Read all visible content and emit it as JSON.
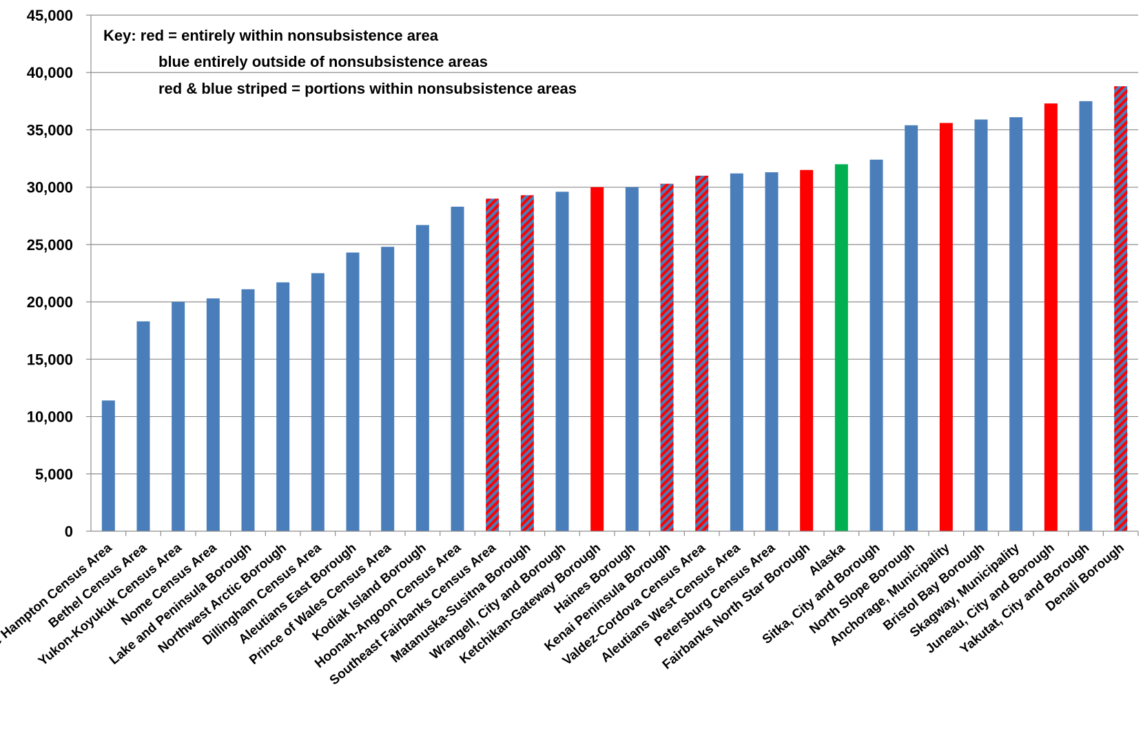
{
  "chart_data": {
    "type": "bar",
    "title": "",
    "xlabel": "",
    "ylabel": "",
    "ylim": [
      0,
      45000
    ],
    "yticks": [
      0,
      5000,
      10000,
      15000,
      20000,
      25000,
      30000,
      35000,
      40000,
      45000
    ],
    "ytick_labels": [
      "0",
      "5,000",
      "10,000",
      "15,000",
      "20,000",
      "25,000",
      "30,000",
      "35,000",
      "40,000",
      "45,000"
    ],
    "grid": true,
    "legend_position": "top-left",
    "key": [
      "Key:  red = entirely within nonsubsistence area",
      "blue entirely outside of nonsubsistence areas",
      "red & blue striped = portions within nonsubsistence areas"
    ],
    "colors": {
      "blue": "#4a7ebb",
      "red": "#ff0000",
      "green": "#00b050",
      "stripe_red": "#ff0000"
    },
    "categories": [
      "Wade Hampton Census Area",
      "Bethel Census Area",
      "Yukon-Koyukuk Census Area",
      "Nome Census Area",
      "Lake and Peninsula Borough",
      "Northwest Arctic Borough",
      "Dillingham Census Area",
      "Aleutians East Borough",
      "Prince of Wales Census Area",
      "Kodiak Island Borough",
      "Hoonah-Angoon Census Area",
      "Southeast Fairbanks Census Area",
      "Matanuska-Susitna Borough",
      "Wrangell, City and Borough",
      "Ketchikan-Gateway Borough",
      "Haines Borough",
      "Kenai Peninsula Borough",
      "Valdez-Cordova Census Area",
      "Aleutians West Census Area",
      "Petersburg Census Area",
      "Fairbanks North Star Borough",
      "Alaska",
      "Sitka, City and Borough",
      "North Slope Borough",
      "Anchorage, Municipality",
      "Bristol Bay Borough",
      "Skagway, Municipality",
      "Juneau, City and Borough",
      "Yakutat, City and Borough",
      "Denali Borough"
    ],
    "values": [
      11400,
      18300,
      20000,
      20300,
      21100,
      21700,
      22500,
      24300,
      24800,
      26700,
      28300,
      29000,
      29300,
      29600,
      30000,
      30000,
      30300,
      31000,
      31200,
      31300,
      31500,
      32000,
      32400,
      35400,
      35600,
      35900,
      36100,
      37300,
      37500,
      38800
    ],
    "styles": [
      "blue",
      "blue",
      "blue",
      "blue",
      "blue",
      "blue",
      "blue",
      "blue",
      "blue",
      "blue",
      "blue",
      "striped",
      "striped",
      "blue",
      "red",
      "blue",
      "striped",
      "striped",
      "blue",
      "blue",
      "red",
      "green",
      "blue",
      "blue",
      "red",
      "blue",
      "blue",
      "red",
      "blue",
      "striped"
    ]
  }
}
